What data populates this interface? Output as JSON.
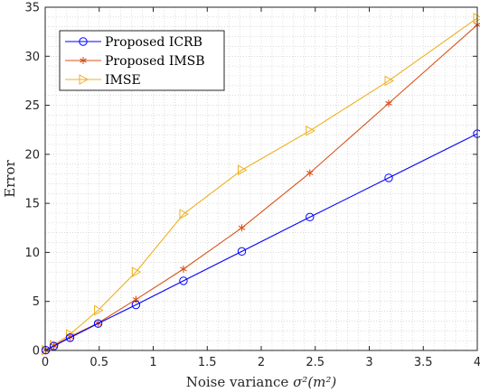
{
  "chart_data": {
    "type": "line",
    "xlabel_prefix": "Noise variance ",
    "xlabel_math": "σ²(m²)",
    "ylabel": "Error",
    "xlim": [
      0,
      4
    ],
    "ylim": [
      0,
      35
    ],
    "xticks": [
      0,
      0.5,
      1,
      1.5,
      2,
      2.5,
      3,
      3.5,
      4
    ],
    "xtick_labels": [
      "0",
      "0.5",
      "1",
      "1.5",
      "2",
      "2.5",
      "3",
      "3.5",
      "4"
    ],
    "yticks": [
      0,
      5,
      10,
      15,
      20,
      25,
      30,
      35
    ],
    "ytick_labels": [
      "0",
      "5",
      "10",
      "15",
      "20",
      "25",
      "30",
      "35"
    ],
    "grid": "minor-dotted",
    "legend_position": "top-left",
    "x": [
      0.005,
      0.08,
      0.23,
      0.49,
      0.84,
      1.28,
      1.82,
      2.45,
      3.18,
      4.0
    ],
    "series": [
      {
        "name": "Proposed ICRB",
        "color": "#0000ff",
        "marker": "circle",
        "values": [
          0.03,
          0.45,
          1.3,
          2.75,
          4.65,
          7.1,
          10.1,
          13.6,
          17.6,
          22.1
        ]
      },
      {
        "name": "Proposed IMSB",
        "color": "#d95319",
        "marker": "asterisk",
        "values": [
          0.03,
          0.48,
          1.4,
          2.8,
          5.2,
          8.3,
          12.5,
          18.1,
          25.2,
          33.2
        ]
      },
      {
        "name": "IMSE",
        "color": "#edb120",
        "marker": "triangle-right",
        "values": [
          0.04,
          0.55,
          1.65,
          4.1,
          8.0,
          13.9,
          18.4,
          22.4,
          27.5,
          33.9
        ]
      }
    ]
  }
}
